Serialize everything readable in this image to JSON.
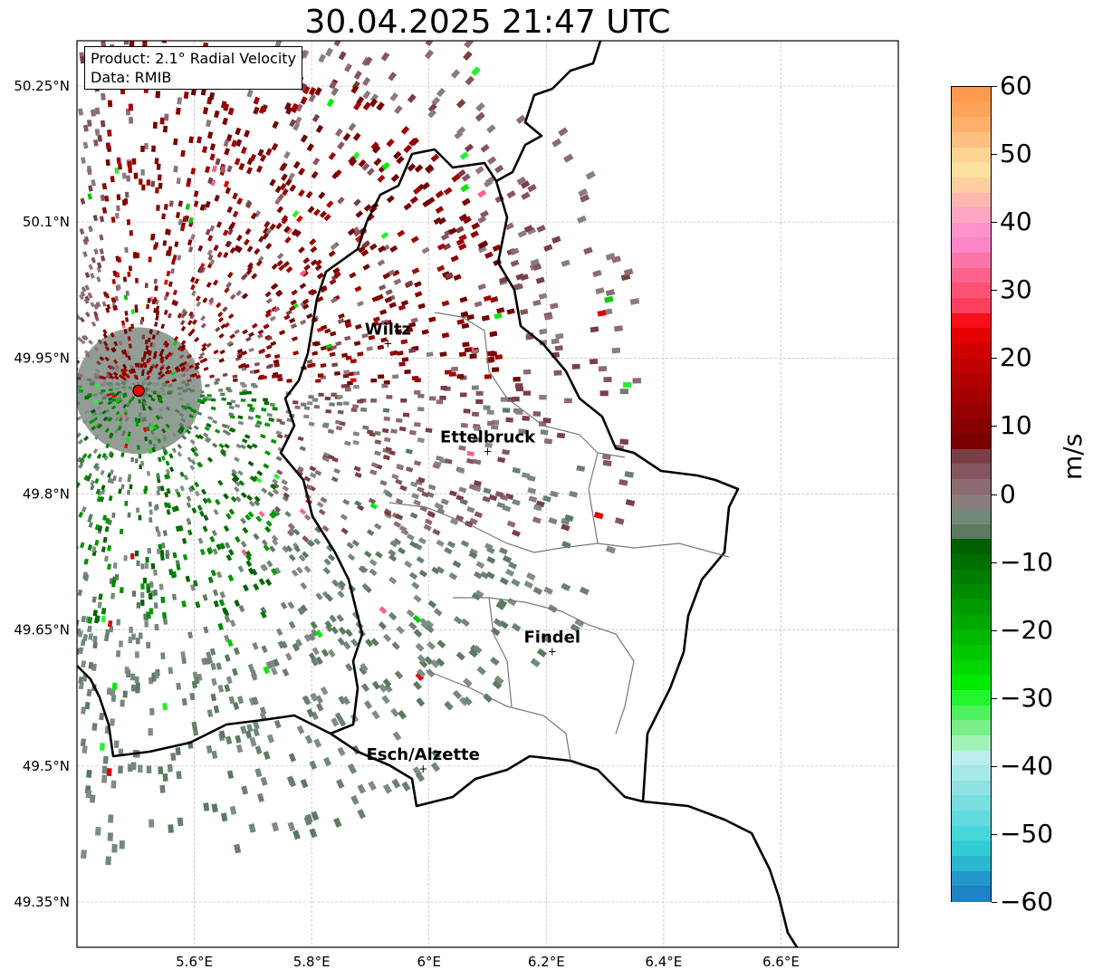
{
  "title": "30.04.2025 21:47 UTC",
  "info_box": {
    "line1": "Product: 2.1° Radial Velocity",
    "line2": "Data: RMIB"
  },
  "map": {
    "lon_range": [
      5.4,
      6.8
    ],
    "lat_range": [
      49.3,
      50.3
    ],
    "lon_ticks": [
      "5.6°E",
      "5.8°E",
      "6°E",
      "6.2°E",
      "6.4°E",
      "6.6°E"
    ],
    "lat_ticks": [
      "50.25°N",
      "50.1°N",
      "49.95°N",
      "49.8°N",
      "49.65°N",
      "49.5°N",
      "49.35°N"
    ],
    "radar_site": {
      "lon": 5.505,
      "lat": 49.914
    },
    "cities": [
      {
        "name": "Wiltz",
        "lon": 5.93,
        "lat": 49.966
      },
      {
        "name": "Ettelbruck",
        "lon": 6.1,
        "lat": 49.847
      },
      {
        "name": "Findel",
        "lon": 6.21,
        "lat": 49.626
      },
      {
        "name": "Esch/Alzette",
        "lon": 5.99,
        "lat": 49.497
      }
    ]
  },
  "colorbar": {
    "unit": "m/s",
    "range": [
      -60,
      60
    ],
    "ticks": [
      "60",
      "50",
      "40",
      "30",
      "20",
      "10",
      "0",
      "−10",
      "−20",
      "−30",
      "−40",
      "−50",
      "−60"
    ],
    "colors": [
      "#fe9a4e",
      "#fea35a",
      "#feb06a",
      "#fec080",
      "#fed494",
      "#fee19e",
      "#fdcfa0",
      "#fdb7b0",
      "#fda6c2",
      "#fd93cb",
      "#fd84c8",
      "#fd74a6",
      "#fd628a",
      "#fd5173",
      "#fc3e5f",
      "#f5101a",
      "#e20000",
      "#d10000",
      "#c00000",
      "#b10000",
      "#a40000",
      "#960000",
      "#870000",
      "#7a0000",
      "#7a3f46",
      "#855560",
      "#8e6a72",
      "#8c7c7e",
      "#73887c",
      "#5b7a60",
      "#006000",
      "#006e00",
      "#007c00",
      "#008a00",
      "#009900",
      "#00a800",
      "#00b800",
      "#00c800",
      "#00d800",
      "#00ea00",
      "#22f42e",
      "#4ef060",
      "#7aee88",
      "#a2f2b8",
      "#bcecec",
      "#a6e8e8",
      "#8ee2e4",
      "#78dee0",
      "#62dade",
      "#48d6da",
      "#34ccd4",
      "#2ab6ce",
      "#2298ca",
      "#1f82c4"
    ]
  }
}
